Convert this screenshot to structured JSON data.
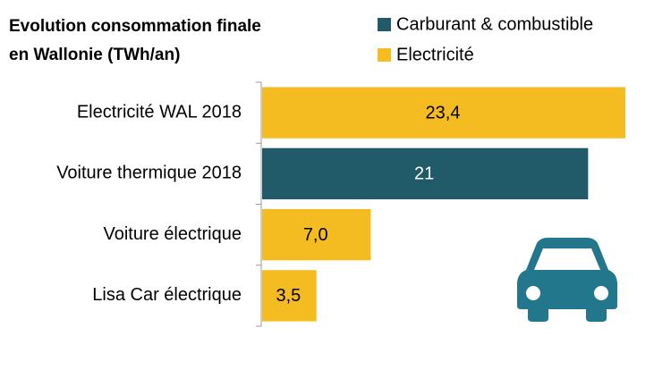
{
  "chart_data": {
    "type": "bar",
    "orientation": "horizontal",
    "title": [
      "Evolution consommation finale",
      "en Wallonie (TWh/an)"
    ],
    "categories": [
      "Electricité WAL 2018",
      "Voiture thermique 2018",
      "Voiture électrique",
      "Lisa Car électrique"
    ],
    "series": [
      {
        "name": "Carburant & combustible",
        "color": "#215a69",
        "values": [
          null,
          21,
          null,
          null
        ],
        "value_labels": [
          null,
          "21",
          null,
          null
        ]
      },
      {
        "name": "Electricité",
        "color": "#f5bc22",
        "values": [
          23.4,
          null,
          7.0,
          3.5
        ],
        "value_labels": [
          "23,4",
          null,
          "7,0",
          "3,5"
        ]
      }
    ]
  }
}
